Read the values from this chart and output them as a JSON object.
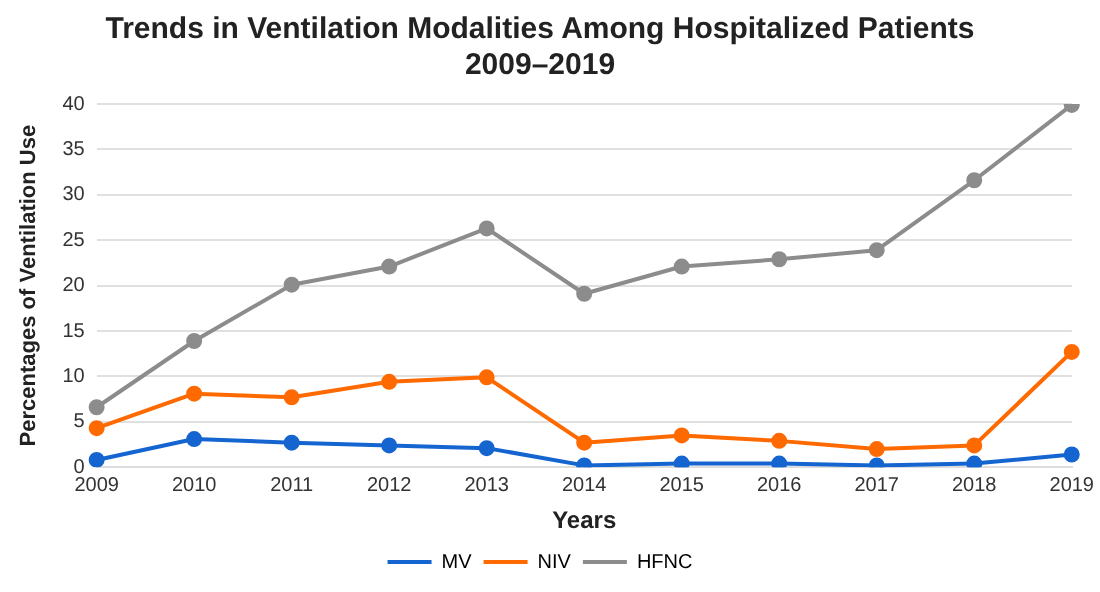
{
  "chart_data": {
    "type": "line",
    "title": "Trends in Ventilation Modalities Among Hospitalized Patients\n2009–2019",
    "xlabel": "Years",
    "ylabel": "Percentages of Ventilation Use",
    "categories": [
      "2009",
      "2010",
      "2011",
      "2012",
      "2013",
      "2014",
      "2015",
      "2016",
      "2017",
      "2018",
      "2019"
    ],
    "series": [
      {
        "name": "MV",
        "color": "#1565d0",
        "values": [
          0.8,
          3.1,
          2.7,
          2.4,
          2.1,
          0.2,
          0.4,
          0.4,
          0.2,
          0.4,
          1.4
        ]
      },
      {
        "name": "NIV",
        "color": "#ff6a00",
        "values": [
          4.3,
          8.1,
          7.7,
          9.4,
          9.9,
          2.7,
          3.5,
          2.9,
          2.0,
          2.4,
          12.7
        ]
      },
      {
        "name": "HFNC",
        "color": "#8c8c8c",
        "values": [
          6.6,
          13.9,
          20.1,
          22.1,
          26.3,
          19.1,
          22.1,
          22.9,
          23.9,
          31.6,
          39.9
        ]
      }
    ],
    "ylim": [
      0,
      40
    ],
    "yticks": [
      0,
      5,
      10,
      15,
      20,
      25,
      30,
      35,
      40
    ],
    "grid": "y",
    "legend": "bottom",
    "marker": "circle",
    "line_style": "solid"
  }
}
